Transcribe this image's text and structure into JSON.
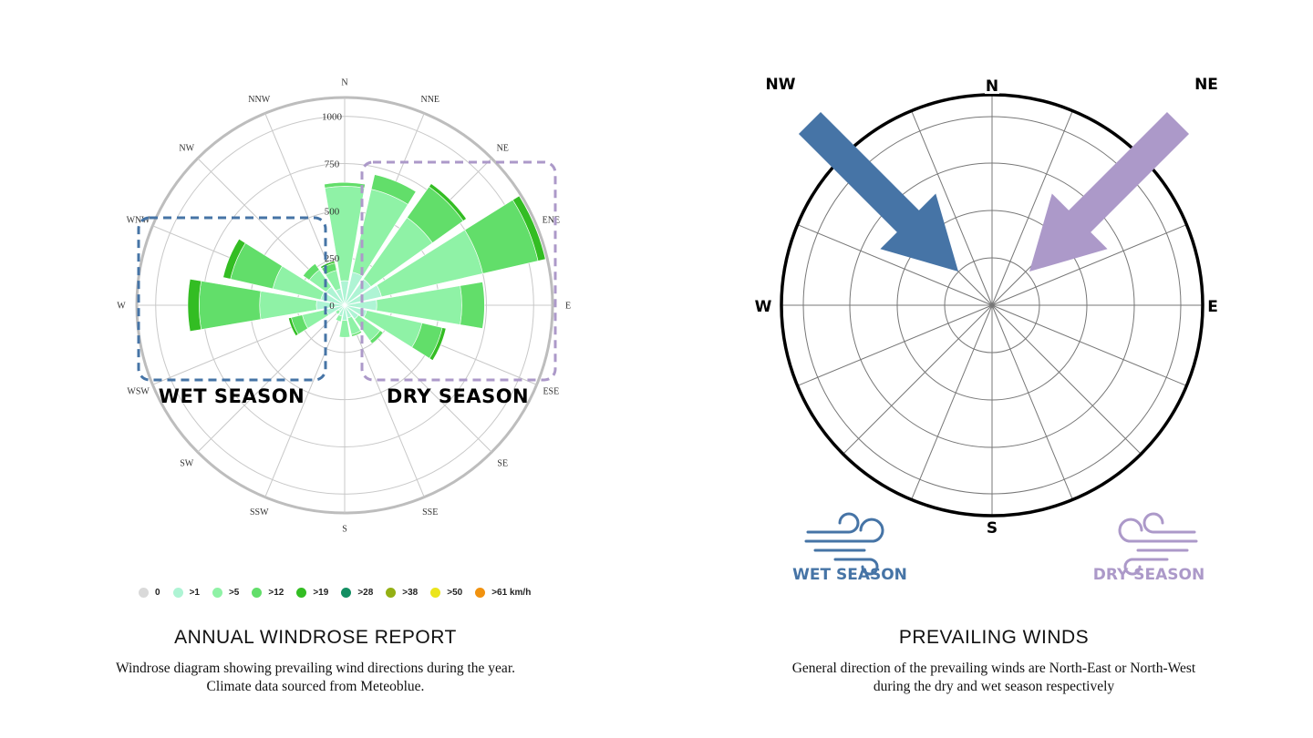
{
  "chart_data": [
    {
      "type": "windrose",
      "directions": [
        "N",
        "NNE",
        "NE",
        "ENE",
        "E",
        "ESE",
        "SE",
        "SSE",
        "S",
        "SSW",
        "SW",
        "WSW",
        "W",
        "WNW",
        "NW",
        "NNW"
      ],
      "radial_ticks": [
        "0",
        "250",
        "500",
        "750",
        "1000"
      ],
      "rmax": 1100,
      "bins": [
        ">1",
        ">5",
        ">12",
        ">19"
      ],
      "series": [
        {
          "dir": "N",
          "values": [
            130,
            500,
            20,
            0
          ]
        },
        {
          "dir": "NNE",
          "values": [
            180,
            450,
            80,
            0
          ]
        },
        {
          "dir": "NE",
          "values": [
            170,
            400,
            200,
            20
          ]
        },
        {
          "dir": "ENE",
          "values": [
            200,
            550,
            300,
            40
          ]
        },
        {
          "dir": "E",
          "values": [
            170,
            450,
            120,
            0
          ]
        },
        {
          "dir": "ESE",
          "values": [
            120,
            300,
            110,
            20
          ]
        },
        {
          "dir": "SE",
          "values": [
            90,
            140,
            20,
            0
          ]
        },
        {
          "dir": "SSE",
          "values": [
            70,
            90,
            10,
            0
          ]
        },
        {
          "dir": "S",
          "values": [
            80,
            90,
            0,
            0
          ]
        },
        {
          "dir": "SSW",
          "values": [
            60,
            30,
            0,
            0
          ]
        },
        {
          "dir": "SW",
          "values": [
            40,
            20,
            0,
            0
          ]
        },
        {
          "dir": "WSW",
          "values": [
            100,
            130,
            60,
            15
          ]
        },
        {
          "dir": "W",
          "values": [
            150,
            300,
            320,
            60
          ]
        },
        {
          "dir": "WNW",
          "values": [
            130,
            260,
            230,
            40
          ]
        },
        {
          "dir": "NW",
          "values": [
            120,
            110,
            40,
            0
          ]
        },
        {
          "dir": "NNW",
          "values": [
            90,
            100,
            40,
            10
          ]
        }
      ],
      "annotations": {
        "wet": "WET SEASON",
        "dry": "DRY SEASON"
      }
    },
    {
      "type": "compass",
      "cardinals": [
        "N",
        "W",
        "E",
        "S"
      ],
      "arrows": [
        {
          "label": "NW",
          "color": "#4674a6"
        },
        {
          "label": "NE",
          "color": "#ac99c9"
        }
      ]
    }
  ],
  "legend": [
    {
      "label": "0",
      "color": "#d9d9d9"
    },
    {
      "label": ">1",
      "color": "#aef4d4"
    },
    {
      "label": ">5",
      "color": "#8ff2a6"
    },
    {
      "label": ">12",
      "color": "#62de6a"
    },
    {
      "label": ">19",
      "color": "#33bd23"
    },
    {
      "label": ">28",
      "color": "#148f63"
    },
    {
      "label": ">38",
      "color": "#94b014"
    },
    {
      "label": ">50",
      "color": "#ebe51c"
    },
    {
      "label": ">61 km/h",
      "color": "#f1920f"
    }
  ],
  "colors": {
    "wet": "#4674a6",
    "dry": "#ac99c9"
  },
  "wind_cards": {
    "wet": "WET SEASON",
    "dry": "DRY SEASON"
  },
  "left_caption": {
    "title": "ANNUAL WINDROSE REPORT",
    "line1": "Windrose diagram showing prevailing wind directions during the year.",
    "line2": "Climate data sourced from Meteoblue."
  },
  "right_caption": {
    "title": "PREVAILING WINDS",
    "line1": "General direction of the prevailing winds are North-East or North-West",
    "line2": "during the dry and wet season respectively"
  }
}
